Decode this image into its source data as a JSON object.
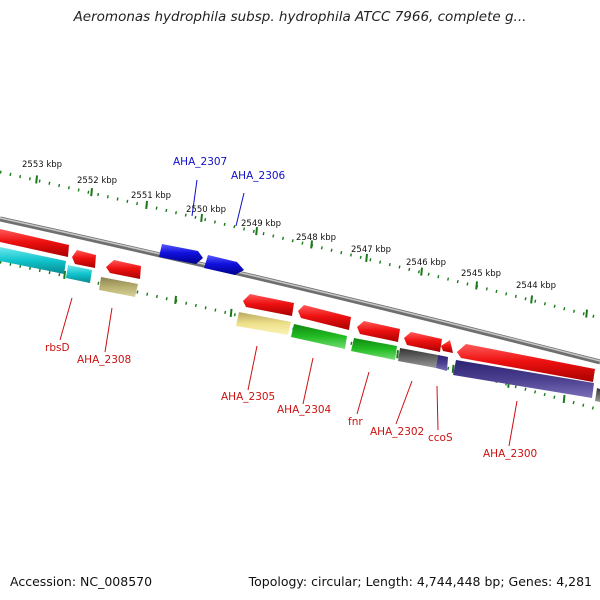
{
  "title": "Aeromonas hydrophila subsp. hydrophila ATCC 7966, complete g...",
  "footer": {
    "accession": "Accession: NC_008570",
    "summary": "Topology: circular; Length: 4,744,448 bp; Genes: 4,281"
  },
  "ruler": {
    "labels": [
      "2553 kbp",
      "2552 kbp",
      "2551 kbp",
      "2550 kbp",
      "2549 kbp",
      "2548 kbp",
      "2547 kbp",
      "2546 kbp",
      "2545 kbp",
      "2544 kbp"
    ]
  },
  "gene_labels": {
    "top": [
      {
        "name": "AHA_2307",
        "color": "#1010c8"
      },
      {
        "name": "AHA_2306",
        "color": "#1010c8"
      }
    ],
    "bottom": [
      {
        "name": "rbsD",
        "color": "#cc1111"
      },
      {
        "name": "AHA_2308",
        "color": "#cc1111"
      },
      {
        "name": "AHA_2305",
        "color": "#cc1111"
      },
      {
        "name": "AHA_2304",
        "color": "#cc1111"
      },
      {
        "name": "fnr",
        "color": "#cc1111"
      },
      {
        "name": "AHA_2302",
        "color": "#cc1111"
      },
      {
        "name": "ccoS",
        "color": "#cc1111"
      },
      {
        "name": "AHA_2300",
        "color": "#cc1111"
      }
    ]
  },
  "colors": {
    "backbone": "#888888",
    "ruler": "#1a7a1a",
    "cds_forward": "#ee1111",
    "cds_reverse": "#1010dd",
    "cyan": "#10c4cc",
    "olive": "#b8b070",
    "pale_yellow": "#eee08a",
    "green": "#22bb22",
    "gray": "#666666",
    "navy": "#4a3f8f"
  }
}
